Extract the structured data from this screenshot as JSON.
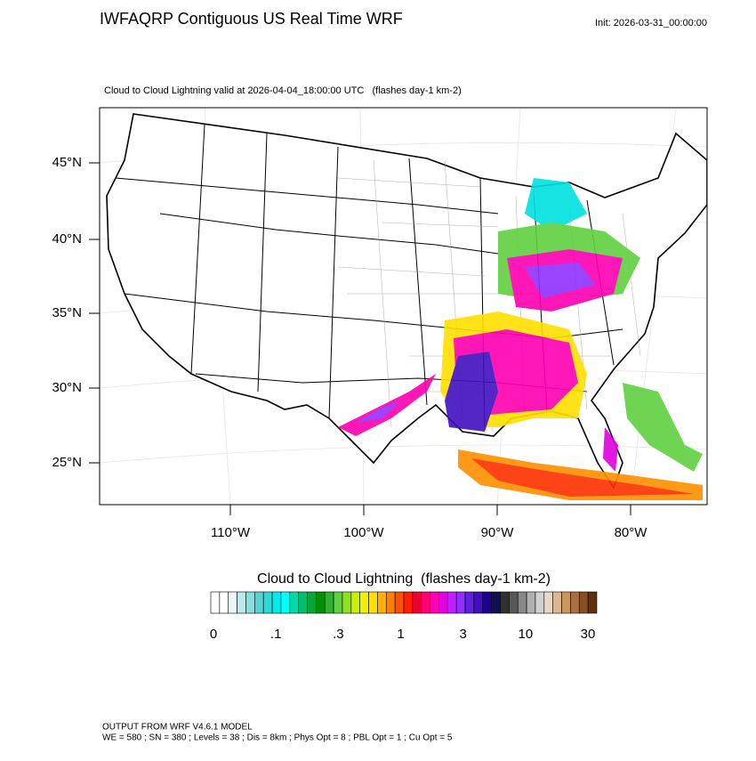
{
  "header": {
    "title": "IWFAQRP Contiguous US Real Time WRF",
    "init": "Init: 2026-03-31_00:00:00",
    "subtitle": "Cloud to Cloud Lightning valid at 2026-04-04_18:00:00 UTC   (flashes day-1 km-2)"
  },
  "map": {
    "lat_labels": [
      "45°N",
      "40°N",
      "35°N",
      "30°N",
      "25°N"
    ],
    "lon_labels": [
      "110°W",
      "100°W",
      "90°W",
      "80°W"
    ]
  },
  "colorbar": {
    "title": "Cloud to Cloud Lightning  (flashes day-1 km-2)",
    "labels": [
      "0",
      ".1",
      ".3",
      "1",
      "3",
      "10",
      "30"
    ],
    "colors": [
      "#ffffff",
      "#ffffff",
      "#e8f8f8",
      "#b8eaea",
      "#88dede",
      "#58d2d2",
      "#30d8d8",
      "#00ecec",
      "#00ffff",
      "#00d8a8",
      "#00c070",
      "#00a838",
      "#009000",
      "#30b030",
      "#60d040",
      "#90e020",
      "#c8f000",
      "#f0f000",
      "#ffe000",
      "#ffb000",
      "#ff8000",
      "#ff5000",
      "#ff2000",
      "#f00030",
      "#ff0070",
      "#ff00b0",
      "#e000e0",
      "#c020ff",
      "#9030ff",
      "#6020e0",
      "#4010c0",
      "#200090",
      "#101050",
      "#303030",
      "#585858",
      "#888888",
      "#b0b0b0",
      "#d0d0d0",
      "#e8d8c8",
      "#dcb890",
      "#c89860",
      "#a87040",
      "#885020",
      "#603010"
    ]
  },
  "footer": {
    "line1": "OUTPUT FROM WRF V4.6.1 MODEL",
    "line2": "WE = 580 ; SN = 380 ; Levels = 38 ; Dis = 8km ; Phys Opt = 8 ; PBL Opt = 1 ; Cu Opt = 5"
  }
}
